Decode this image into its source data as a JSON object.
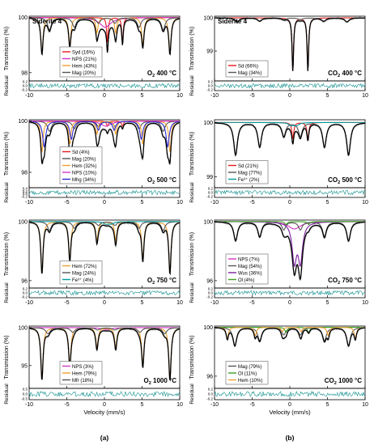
{
  "panel_labels": [
    "(a)",
    "(b)"
  ],
  "chart_data": [
    {
      "type": "line",
      "column": "a",
      "sample": "Siderite 4",
      "condition": "O2 400 °C",
      "ylabel": "Transmission (%)",
      "residual_label": "Residual",
      "xlabel": "",
      "xlim": [
        -10,
        10
      ],
      "xticks": [
        "-10",
        "-5",
        "0",
        "5",
        "10"
      ],
      "ylim": [
        97.7,
        100.05
      ],
      "yticks": [
        {
          "v": 100,
          "t": "100"
        },
        {
          "v": 98,
          "t": "98"
        }
      ],
      "residual_ticks": [
        "0.2",
        "0.0",
        "-0.2"
      ],
      "series": [
        {
          "name": "Syd (16%)",
          "color": "#e8191a",
          "lines": [
            {
              "c": 0.4,
              "w": 0.12,
              "d": 0.9
            },
            {
              "c": 2.4,
              "w": 0.12,
              "d": 0.9
            }
          ]
        },
        {
          "name": "NPS (21%)",
          "color": "#d633c9",
          "lines": [
            {
              "c": 0.1,
              "w": 0.9,
              "d": 0.35
            }
          ]
        },
        {
          "name": "Hem (43%)",
          "color": "#f0a030",
          "lines": [
            {
              "c": -8.3,
              "w": 0.18,
              "d": 1.3
            },
            {
              "c": -4.6,
              "w": 0.18,
              "d": 1.0
            },
            {
              "c": -1.0,
              "w": 0.18,
              "d": 0.55
            },
            {
              "c": 1.5,
              "w": 0.18,
              "d": 0.55
            },
            {
              "c": 5.1,
              "w": 0.18,
              "d": 1.0
            },
            {
              "c": 8.7,
              "w": 0.18,
              "d": 1.3
            }
          ]
        },
        {
          "name": "Mag (20%)",
          "color": "#555555",
          "lines": [
            {
              "c": -7.3,
              "w": 0.3,
              "d": 0.45
            },
            {
              "c": -4.0,
              "w": 0.3,
              "d": 0.35
            },
            {
              "c": -0.8,
              "w": 0.3,
              "d": 0.2
            },
            {
              "c": 1.4,
              "w": 0.3,
              "d": 0.2
            },
            {
              "c": 4.6,
              "w": 0.3,
              "d": 0.35
            },
            {
              "c": 7.8,
              "w": 0.3,
              "d": 0.45
            }
          ]
        }
      ]
    },
    {
      "type": "line",
      "column": "a",
      "sample": "",
      "condition": "O2 500 °C",
      "ylabel": "Transmission (%)",
      "residual_label": "Residual",
      "xlabel": "",
      "xlim": [
        -10,
        10
      ],
      "xticks": [
        "-10",
        "-5",
        "0",
        "5",
        "10"
      ],
      "ylim": [
        97.4,
        100.05
      ],
      "yticks": [
        {
          "v": 100,
          "t": "100"
        },
        {
          "v": 98,
          "t": "98"
        }
      ],
      "residual_ticks": [
        "0.4",
        "0.2",
        "0.0",
        "-0.2"
      ],
      "series": [
        {
          "name": "Sd (4%)",
          "color": "#e8191a",
          "lines": [
            {
              "c": 0.4,
              "w": 0.15,
              "d": 0.2
            },
            {
              "c": 2.4,
              "w": 0.15,
              "d": 0.2
            }
          ]
        },
        {
          "name": "Mag (20%)",
          "color": "#555555",
          "lines": [
            {
              "c": -7.3,
              "w": 0.3,
              "d": 0.4
            },
            {
              "c": -4.0,
              "w": 0.3,
              "d": 0.3
            },
            {
              "c": -0.8,
              "w": 0.3,
              "d": 0.2
            },
            {
              "c": 1.4,
              "w": 0.3,
              "d": 0.2
            },
            {
              "c": 4.6,
              "w": 0.3,
              "d": 0.3
            },
            {
              "c": 7.8,
              "w": 0.3,
              "d": 0.4
            }
          ]
        },
        {
          "name": "Hem (32%)",
          "color": "#f0a030",
          "lines": [
            {
              "c": -8.3,
              "w": 0.18,
              "d": 1.2
            },
            {
              "c": -4.6,
              "w": 0.18,
              "d": 0.9
            },
            {
              "c": -1.0,
              "w": 0.18,
              "d": 0.5
            },
            {
              "c": 1.5,
              "w": 0.18,
              "d": 0.5
            },
            {
              "c": 5.1,
              "w": 0.18,
              "d": 0.9
            },
            {
              "c": 8.7,
              "w": 0.18,
              "d": 1.2
            }
          ]
        },
        {
          "name": "NPS (10%)",
          "color": "#d633c9",
          "lines": [
            {
              "c": 0.2,
              "w": 0.8,
              "d": 0.2
            }
          ]
        },
        {
          "name": "Mhg (34%)",
          "color": "#2a2ad0",
          "lines": [
            {
              "c": -8.0,
              "w": 0.25,
              "d": 1.0
            },
            {
              "c": -4.4,
              "w": 0.25,
              "d": 0.7
            },
            {
              "c": -0.8,
              "w": 0.25,
              "d": 0.35
            },
            {
              "c": 1.3,
              "w": 0.25,
              "d": 0.35
            },
            {
              "c": 4.9,
              "w": 0.25,
              "d": 0.7
            },
            {
              "c": 8.4,
              "w": 0.25,
              "d": 1.0
            }
          ]
        }
      ]
    },
    {
      "type": "line",
      "column": "a",
      "sample": "",
      "condition": "O2 750 °C",
      "ylabel": "Transmission (%)",
      "residual_label": "Residual",
      "xlabel": "",
      "xlim": [
        -10,
        10
      ],
      "xticks": [
        "-10",
        "-5",
        "0",
        "5",
        "10"
      ],
      "ylim": [
        95.5,
        100.1
      ],
      "yticks": [
        {
          "v": 100,
          "t": "100"
        },
        {
          "v": 96,
          "t": "96"
        }
      ],
      "residual_ticks": [
        "0.2",
        "0.0",
        "-0.2"
      ],
      "series": [
        {
          "name": "Hem (72%)",
          "color": "#f0a030",
          "lines": [
            {
              "c": -8.3,
              "w": 0.18,
              "d": 3.5
            },
            {
              "c": -4.6,
              "w": 0.18,
              "d": 2.6
            },
            {
              "c": -1.0,
              "w": 0.18,
              "d": 1.3
            },
            {
              "c": 1.5,
              "w": 0.18,
              "d": 1.3
            },
            {
              "c": 5.1,
              "w": 0.18,
              "d": 2.6
            },
            {
              "c": 8.7,
              "w": 0.18,
              "d": 3.5
            }
          ]
        },
        {
          "name": "Mag (24%)",
          "color": "#555555",
          "lines": [
            {
              "c": -7.3,
              "w": 0.3,
              "d": 0.6
            },
            {
              "c": -4.0,
              "w": 0.3,
              "d": 0.45
            },
            {
              "c": -0.8,
              "w": 0.3,
              "d": 0.25
            },
            {
              "c": 1.4,
              "w": 0.3,
              "d": 0.25
            },
            {
              "c": 4.6,
              "w": 0.3,
              "d": 0.45
            },
            {
              "c": 7.8,
              "w": 0.3,
              "d": 0.6
            }
          ]
        },
        {
          "name": "Fe³⁺ (4%)",
          "color": "#009c9c",
          "lines": [
            {
              "c": 0.2,
              "w": 0.4,
              "d": 0.15
            },
            {
              "c": 0.9,
              "w": 0.4,
              "d": 0.15
            }
          ]
        }
      ]
    },
    {
      "type": "line",
      "column": "a",
      "sample": "",
      "condition": "O2 1000 °C",
      "ylabel": "Transmission (%)",
      "residual_label": "Residual",
      "xlabel": "Velocity (mm/s)",
      "xlim": [
        -10,
        10
      ],
      "xticks": [
        "-10",
        "-5",
        "0",
        "5",
        "10"
      ],
      "ylim": [
        92.0,
        100.2
      ],
      "yticks": [
        {
          "v": 100,
          "t": "100"
        },
        {
          "v": 95,
          "t": "95"
        }
      ],
      "residual_ticks": [
        "0.5",
        "0.0",
        "-0.5"
      ],
      "series": [
        {
          "name": "NPS (3%)",
          "color": "#d633c9",
          "lines": [
            {
              "c": 0.3,
              "w": 0.8,
              "d": 0.25
            }
          ]
        },
        {
          "name": "Hem (79%)",
          "color": "#f0a030",
          "lines": [
            {
              "c": -8.3,
              "w": 0.18,
              "d": 6.8
            },
            {
              "c": -4.6,
              "w": 0.18,
              "d": 5.0
            },
            {
              "c": -1.0,
              "w": 0.18,
              "d": 2.6
            },
            {
              "c": 1.5,
              "w": 0.18,
              "d": 2.6
            },
            {
              "c": 5.1,
              "w": 0.18,
              "d": 5.0
            },
            {
              "c": 8.7,
              "w": 0.18,
              "d": 6.8
            }
          ]
        },
        {
          "name": "Mfr (18%)",
          "color": "#555555",
          "lines": [
            {
              "c": -7.5,
              "w": 0.35,
              "d": 0.8
            },
            {
              "c": -4.2,
              "w": 0.35,
              "d": 0.6
            },
            {
              "c": -0.9,
              "w": 0.35,
              "d": 0.3
            },
            {
              "c": 1.4,
              "w": 0.35,
              "d": 0.3
            },
            {
              "c": 4.7,
              "w": 0.35,
              "d": 0.6
            },
            {
              "c": 8.0,
              "w": 0.35,
              "d": 0.8
            }
          ]
        }
      ]
    },
    {
      "type": "line",
      "column": "b",
      "sample": "Siderite 4",
      "condition": "CO2 400 °C",
      "ylabel": "Transmission (%)",
      "residual_label": "Residual",
      "xlabel": "",
      "xlim": [
        -10,
        10
      ],
      "xticks": [
        "-10",
        "-5",
        "0",
        "5",
        "10"
      ],
      "ylim": [
        98.1,
        100.05
      ],
      "yticks": [
        {
          "v": 100,
          "t": "100"
        },
        {
          "v": 99,
          "t": "99"
        }
      ],
      "residual_ticks": [
        "0.2",
        "0.0",
        "-0.2"
      ],
      "series": [
        {
          "name": "Sd (66%)",
          "color": "#e8191a",
          "lines": [
            {
              "c": 0.4,
              "w": 0.12,
              "d": 1.6
            },
            {
              "c": 2.4,
              "w": 0.12,
              "d": 1.6
            }
          ]
        },
        {
          "name": "Mag (34%)",
          "color": "#555555",
          "lines": [
            {
              "c": -7.0,
              "w": 0.35,
              "d": 0.12
            },
            {
              "c": -4.0,
              "w": 0.35,
              "d": 0.1
            },
            {
              "c": -0.8,
              "w": 0.35,
              "d": 0.05
            },
            {
              "c": 1.4,
              "w": 0.35,
              "d": 0.05
            },
            {
              "c": 4.5,
              "w": 0.35,
              "d": 0.1
            },
            {
              "c": 7.6,
              "w": 0.35,
              "d": 0.12
            }
          ]
        }
      ]
    },
    {
      "type": "line",
      "column": "b",
      "sample": "",
      "condition": "CO2 500 °C",
      "ylabel": "Transmission (%)",
      "residual_label": "Residual",
      "xlabel": "",
      "xlim": [
        -10,
        10
      ],
      "xticks": [
        "-10",
        "-5",
        "0",
        "5",
        "10"
      ],
      "ylim": [
        98.8,
        100.05
      ],
      "yticks": [
        {
          "v": 100,
          "t": "100"
        },
        {
          "v": 99,
          "t": "99"
        }
      ],
      "residual_ticks": [
        "0.2",
        "0.0",
        "-0.2"
      ],
      "series": [
        {
          "name": "Sd (21%)",
          "color": "#e8191a",
          "lines": [
            {
              "c": 0.4,
              "w": 0.15,
              "d": 0.3
            },
            {
              "c": 2.4,
              "w": 0.15,
              "d": 0.3
            }
          ]
        },
        {
          "name": "Mag (77%)",
          "color": "#555555",
          "lines": [
            {
              "c": -7.2,
              "w": 0.3,
              "d": 0.6
            },
            {
              "c": -4.0,
              "w": 0.3,
              "d": 0.45
            },
            {
              "c": -0.8,
              "w": 0.3,
              "d": 0.25
            },
            {
              "c": 1.4,
              "w": 0.3,
              "d": 0.25
            },
            {
              "c": 4.6,
              "w": 0.3,
              "d": 0.45
            },
            {
              "c": 7.8,
              "w": 0.3,
              "d": 0.6
            }
          ]
        },
        {
          "name": "Fe³⁺ (2%)",
          "color": "#009c9c",
          "lines": [
            {
              "c": 0.2,
              "w": 0.4,
              "d": 0.05
            },
            {
              "c": 0.9,
              "w": 0.4,
              "d": 0.05
            }
          ]
        }
      ]
    },
    {
      "type": "line",
      "column": "b",
      "sample": "",
      "condition": "CO2 750 °C",
      "ylabel": "Transmission (%)",
      "residual_label": "Residual",
      "xlabel": "",
      "xlim": [
        -10,
        10
      ],
      "xticks": [
        "-10",
        "-5",
        "0",
        "5",
        "10"
      ],
      "ylim": [
        95.5,
        100.1
      ],
      "yticks": [
        {
          "v": 100,
          "t": "100"
        },
        {
          "v": 96,
          "t": "96"
        }
      ],
      "residual_ticks": [
        "0.2",
        "0.0",
        "-0.2"
      ],
      "series": [
        {
          "name": "NPS (7%)",
          "color": "#d633c9",
          "lines": [
            {
              "c": 0.6,
              "w": 1.0,
              "d": 0.5
            }
          ]
        },
        {
          "name": "Mag (54%)",
          "color": "#555555",
          "lines": [
            {
              "c": -7.2,
              "w": 0.3,
              "d": 1.3
            },
            {
              "c": -4.0,
              "w": 0.3,
              "d": 1.0
            },
            {
              "c": -0.8,
              "w": 0.3,
              "d": 0.55
            },
            {
              "c": 1.4,
              "w": 0.3,
              "d": 0.55
            },
            {
              "c": 4.6,
              "w": 0.3,
              "d": 1.0
            },
            {
              "c": 7.8,
              "w": 0.3,
              "d": 1.3
            }
          ]
        },
        {
          "name": "Wus (36%)",
          "color": "#7a1e9e",
          "lines": [
            {
              "c": 0.6,
              "w": 0.35,
              "d": 2.6
            },
            {
              "c": 1.4,
              "w": 0.35,
              "d": 2.6
            }
          ]
        },
        {
          "name": "Ol (4%)",
          "color": "#3aa020",
          "lines": [
            {
              "c": -0.5,
              "w": 0.2,
              "d": 0.2
            },
            {
              "c": 2.5,
              "w": 0.2,
              "d": 0.2
            }
          ]
        }
      ]
    },
    {
      "type": "line",
      "column": "b",
      "sample": "",
      "condition": "CO2 1000 °C",
      "ylabel": "Transmission (%)",
      "residual_label": "Residual",
      "xlabel": "Velocity (mm/s)",
      "xlim": [
        -10,
        10
      ],
      "xticks": [
        "-10",
        "-5",
        "0",
        "5",
        "10"
      ],
      "ylim": [
        95.0,
        100.1
      ],
      "yticks": [
        {
          "v": 100,
          "t": "100"
        },
        {
          "v": 96,
          "t": "96"
        }
      ],
      "residual_ticks": [
        "0.2",
        "0.0",
        "-0.2"
      ],
      "series": [
        {
          "name": "Mag (79%)",
          "color": "#555555",
          "lines": [
            {
              "c": -7.3,
              "w": 0.3,
              "d": 1.5
            },
            {
              "c": -4.0,
              "w": 0.3,
              "d": 1.1
            },
            {
              "c": -0.8,
              "w": 0.3,
              "d": 0.6
            },
            {
              "c": 1.4,
              "w": 0.3,
              "d": 0.6
            },
            {
              "c": 4.6,
              "w": 0.3,
              "d": 1.1
            },
            {
              "c": 7.8,
              "w": 0.3,
              "d": 1.5
            }
          ]
        },
        {
          "name": "Ol (11%)",
          "color": "#3aa020",
          "lines": [
            {
              "c": -0.5,
              "w": 0.2,
              "d": 0.4
            },
            {
              "c": 2.5,
              "w": 0.2,
              "d": 0.4
            }
          ]
        },
        {
          "name": "Hem (10%)",
          "color": "#f0a030",
          "lines": [
            {
              "c": -8.3,
              "w": 0.18,
              "d": 0.9
            },
            {
              "c": -4.6,
              "w": 0.18,
              "d": 0.7
            },
            {
              "c": -1.0,
              "w": 0.18,
              "d": 0.35
            },
            {
              "c": 1.5,
              "w": 0.18,
              "d": 0.35
            },
            {
              "c": 5.1,
              "w": 0.18,
              "d": 0.7
            },
            {
              "c": 8.7,
              "w": 0.18,
              "d": 0.9
            }
          ]
        }
      ]
    }
  ]
}
